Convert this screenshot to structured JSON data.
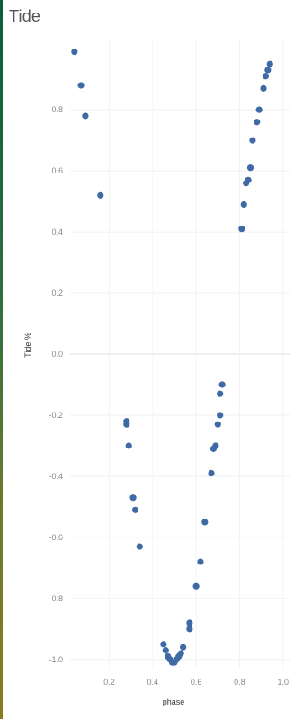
{
  "title": "Tide",
  "chart_data": {
    "type": "scatter",
    "xlabel": "phase",
    "ylabel": "Tide %",
    "xlim": [
      0.02,
      1.03
    ],
    "ylim": [
      -1.03,
      1.03
    ],
    "xticks": [
      {
        "v": 0.2,
        "label": "0.2"
      },
      {
        "v": 0.4,
        "label": "0.4"
      },
      {
        "v": 0.6,
        "label": "0.6"
      },
      {
        "v": 0.8,
        "label": "0.8"
      },
      {
        "v": 1.0,
        "label": "1.0"
      }
    ],
    "yticks": [
      {
        "v": 0.8,
        "label": "0.8"
      },
      {
        "v": 0.6,
        "label": "0.6"
      },
      {
        "v": 0.4,
        "label": "0.4"
      },
      {
        "v": 0.2,
        "label": "0.2"
      },
      {
        "v": 0.0,
        "label": "0.0"
      },
      {
        "v": -0.2,
        "label": "-0.2"
      },
      {
        "v": -0.4,
        "label": "-0.4"
      },
      {
        "v": -0.6,
        "label": "-0.6"
      },
      {
        "v": -0.8,
        "label": "-0.8"
      },
      {
        "v": -1.0,
        "label": "-1.0"
      }
    ],
    "grid": true,
    "marker_color": "#3f6aa6",
    "points": [
      {
        "x": 0.04,
        "y": 0.99
      },
      {
        "x": 0.07,
        "y": 0.88
      },
      {
        "x": 0.09,
        "y": 0.78
      },
      {
        "x": 0.16,
        "y": 0.52
      },
      {
        "x": 0.28,
        "y": -0.22
      },
      {
        "x": 0.28,
        "y": -0.23
      },
      {
        "x": 0.29,
        "y": -0.3
      },
      {
        "x": 0.31,
        "y": -0.47
      },
      {
        "x": 0.32,
        "y": -0.51
      },
      {
        "x": 0.34,
        "y": -0.63
      },
      {
        "x": 0.45,
        "y": -0.95
      },
      {
        "x": 0.46,
        "y": -0.97
      },
      {
        "x": 0.47,
        "y": -0.99
      },
      {
        "x": 0.48,
        "y": -1.0
      },
      {
        "x": 0.49,
        "y": -1.01
      },
      {
        "x": 0.5,
        "y": -1.01
      },
      {
        "x": 0.51,
        "y": -1.0
      },
      {
        "x": 0.52,
        "y": -0.99
      },
      {
        "x": 0.53,
        "y": -0.98
      },
      {
        "x": 0.54,
        "y": -0.96
      },
      {
        "x": 0.57,
        "y": -0.9
      },
      {
        "x": 0.57,
        "y": -0.88
      },
      {
        "x": 0.6,
        "y": -0.76
      },
      {
        "x": 0.62,
        "y": -0.68
      },
      {
        "x": 0.64,
        "y": -0.55
      },
      {
        "x": 0.67,
        "y": -0.39
      },
      {
        "x": 0.68,
        "y": -0.31
      },
      {
        "x": 0.69,
        "y": -0.3
      },
      {
        "x": 0.7,
        "y": -0.23
      },
      {
        "x": 0.71,
        "y": -0.2
      },
      {
        "x": 0.71,
        "y": -0.13
      },
      {
        "x": 0.72,
        "y": -0.1
      },
      {
        "x": 0.81,
        "y": 0.41
      },
      {
        "x": 0.82,
        "y": 0.49
      },
      {
        "x": 0.83,
        "y": 0.56
      },
      {
        "x": 0.84,
        "y": 0.57
      },
      {
        "x": 0.85,
        "y": 0.61
      },
      {
        "x": 0.86,
        "y": 0.7
      },
      {
        "x": 0.88,
        "y": 0.76
      },
      {
        "x": 0.89,
        "y": 0.8
      },
      {
        "x": 0.91,
        "y": 0.87
      },
      {
        "x": 0.92,
        "y": 0.91
      },
      {
        "x": 0.93,
        "y": 0.93
      },
      {
        "x": 0.94,
        "y": 0.95
      }
    ]
  }
}
